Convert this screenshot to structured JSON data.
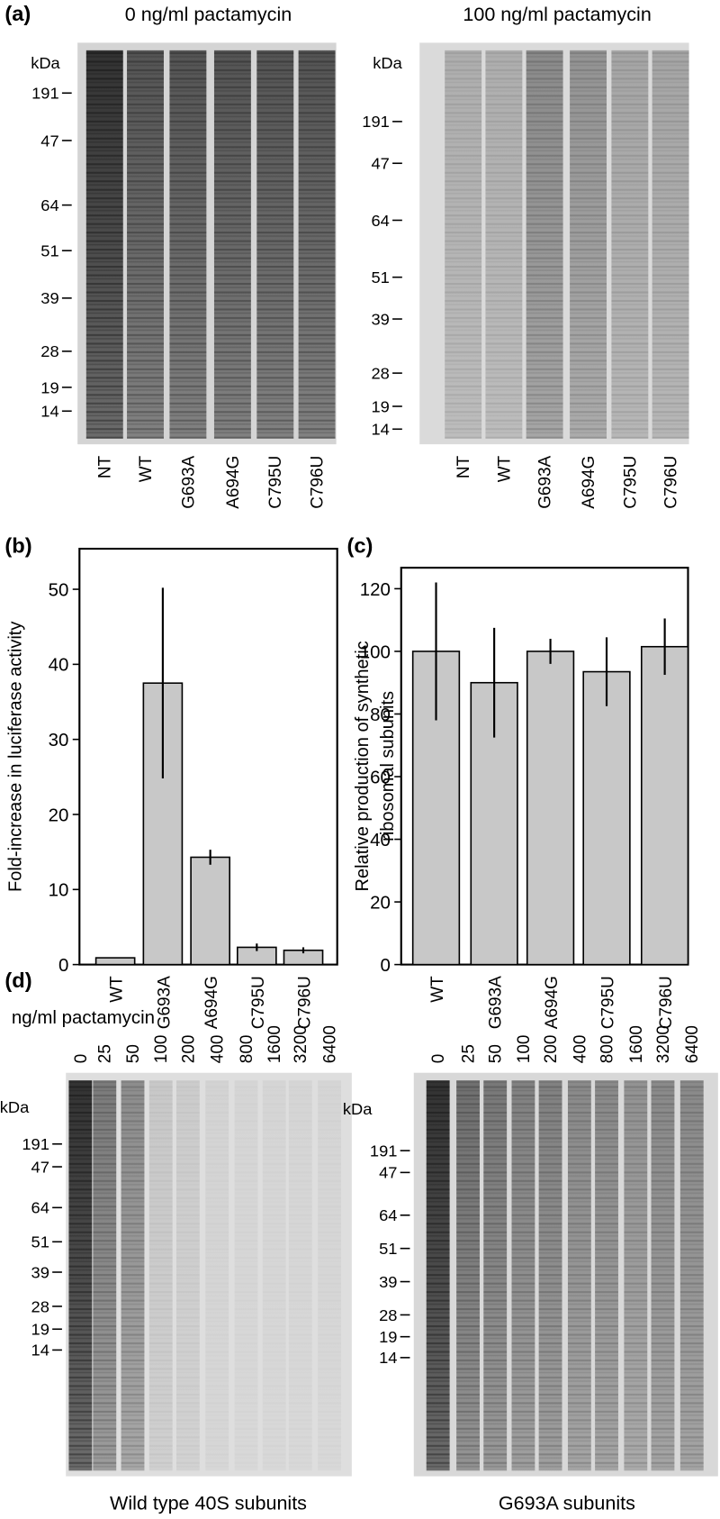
{
  "panel_labels": [
    "(a)",
    "(b)",
    "(c)",
    "(d)"
  ],
  "dose_label": "ng/ml pactamycin",
  "gels": [
    {
      "title": "0 ng/ml pactamycin",
      "unit": "kDa",
      "markers": [
        "191",
        "47",
        "64",
        "51",
        "39",
        "28",
        "19",
        "14"
      ],
      "lanes": [
        "NT",
        "WT",
        "G693A",
        "A694G",
        "C795U",
        "C796U"
      ]
    },
    {
      "title": "100 ng/ml pactamycin",
      "unit": "kDa",
      "markers": [
        "191",
        "47",
        "64",
        "51",
        "39",
        "28",
        "19",
        "14"
      ],
      "lanes": [
        "NT",
        "WT",
        "G693A",
        "A694G",
        "C795U",
        "C796U"
      ]
    },
    {
      "caption": "Wild type 40S subunits",
      "unit": "kDa",
      "markers": [
        "191",
        "47",
        "64",
        "51",
        "39",
        "28",
        "19",
        "14"
      ],
      "lanes": [
        "0",
        "25",
        "50",
        "100",
        "200",
        "400",
        "800",
        "1600",
        "3200",
        "6400"
      ]
    },
    {
      "caption": "G693A subunits",
      "unit": "kDa",
      "markers": [
        "191",
        "47",
        "64",
        "51",
        "39",
        "28",
        "19",
        "14"
      ],
      "lanes": [
        "0",
        "25",
        "50",
        "100",
        "200",
        "400",
        "800",
        "1600",
        "3200",
        "6400"
      ]
    }
  ],
  "chart_data": [
    {
      "type": "bar",
      "ylabel": "Fold-increase in luciferase activity",
      "categories": [
        "WT",
        "G693A",
        "A694G",
        "C795U",
        "C796U"
      ],
      "values": [
        0.9,
        37.5,
        14.3,
        2.3,
        1.9
      ],
      "errors": [
        0,
        12.7,
        1,
        0.5,
        0.4
      ],
      "color": "#c8c8c8",
      "ylim": [
        0,
        55.4
      ],
      "yticks": [
        0,
        10,
        20,
        30,
        40,
        50
      ]
    },
    {
      "type": "bar",
      "ylabel": [
        "Relative production of synthetic",
        "ribosomal subunits"
      ],
      "categories": [
        "WT",
        "G693A",
        "A694G",
        "C795U",
        "C796U"
      ],
      "values": [
        100,
        90,
        100,
        93.5,
        101.5
      ],
      "errors": [
        22,
        17.5,
        4,
        11,
        9
      ],
      "color": "#c8c8c8",
      "ylim": [
        0,
        126.7
      ],
      "yticks": [
        0,
        20,
        40,
        60,
        80,
        100,
        120
      ]
    }
  ]
}
